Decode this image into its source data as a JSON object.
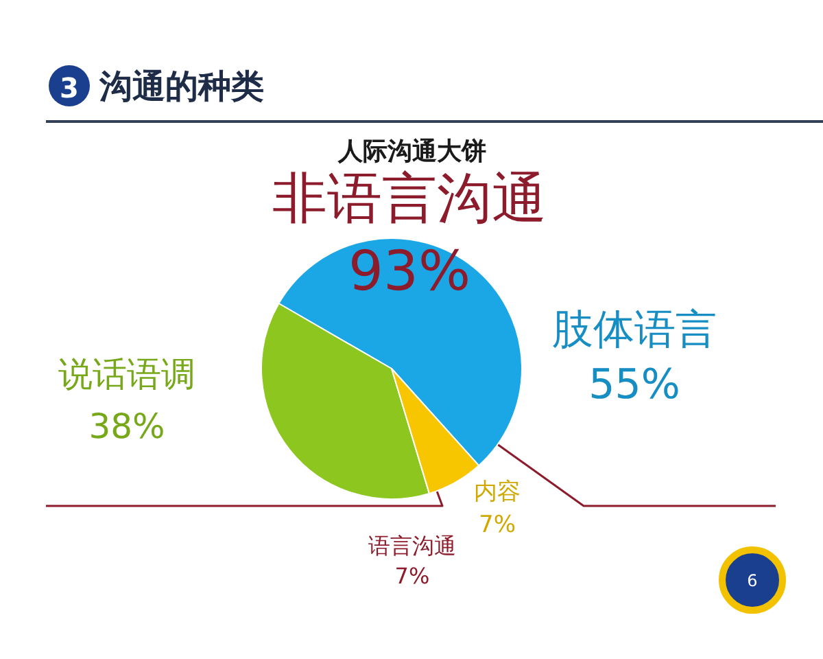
{
  "chart_data": {
    "type": "pie",
    "title": "沟通的种类",
    "subtitle": "人际沟通大饼",
    "categories": [
      "肢体语言",
      "说话语调",
      "内容"
    ],
    "values": [
      55,
      38,
      7
    ],
    "colors": [
      "#1ba6e6",
      "#8cc61e",
      "#f7c600"
    ],
    "value_labels": [
      "55%",
      "38%",
      "7%"
    ],
    "annotations": [
      "3",
      "非语言沟通\n93%",
      "语言沟通\n7%",
      "6"
    ]
  }
}
